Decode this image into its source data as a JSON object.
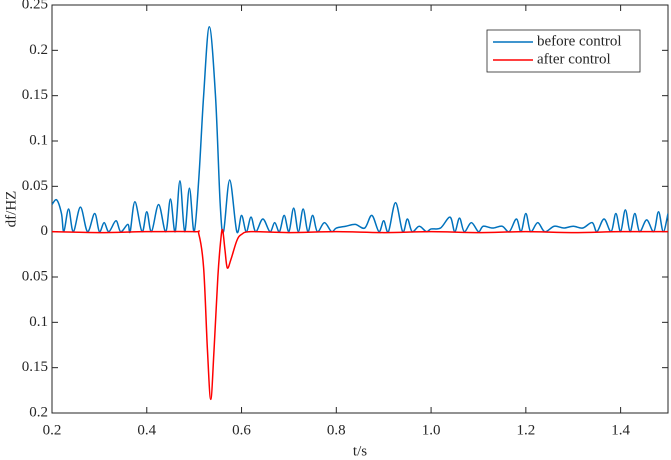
{
  "chart_data": {
    "type": "line",
    "xlabel": "t/s",
    "ylabel": "df/HZ",
    "xlim": [
      0.2,
      1.5
    ],
    "ylim": [
      -0.2,
      0.25
    ],
    "xticks": [
      0.2,
      0.4,
      0.6,
      0.8,
      {
        "value": 1,
        "label": "1.0"
      },
      1.2,
      1.4
    ],
    "yticks": [
      0.25,
      0.2,
      0.15,
      0.1,
      0.05,
      0,
      {
        "value": -0.05,
        "label": "0.05"
      },
      {
        "value": -0.1,
        "label": "0.1"
      },
      {
        "value": -0.15,
        "label": "0.15"
      },
      {
        "value": -0.2,
        "label": "0.2"
      }
    ],
    "grid": false,
    "legend": "upper right",
    "series": [
      {
        "name": "before control",
        "color": "#0072bd",
        "x": [
          0.2,
          0.21,
          0.22,
          0.225,
          0.235,
          0.245,
          0.26,
          0.275,
          0.29,
          0.3,
          0.31,
          0.32,
          0.335,
          0.345,
          0.36,
          0.365,
          0.375,
          0.39,
          0.4,
          0.41,
          0.425,
          0.44,
          0.45,
          0.46,
          0.47,
          0.48,
          0.49,
          0.5,
          0.51,
          0.52,
          0.532,
          0.545,
          0.555,
          0.562,
          0.575,
          0.59,
          0.6,
          0.61,
          0.62,
          0.63,
          0.645,
          0.66,
          0.67,
          0.68,
          0.69,
          0.7,
          0.71,
          0.72,
          0.73,
          0.74,
          0.75,
          0.76,
          0.775,
          0.79,
          0.8,
          0.82,
          0.84,
          0.86,
          0.875,
          0.89,
          0.9,
          0.91,
          0.925,
          0.94,
          0.95,
          0.96,
          0.975,
          0.99,
          1.0,
          1.02,
          1.04,
          1.05,
          1.06,
          1.07,
          1.085,
          1.1,
          1.11,
          1.13,
          1.15,
          1.165,
          1.18,
          1.19,
          1.2,
          1.21,
          1.225,
          1.24,
          1.26,
          1.28,
          1.3,
          1.32,
          1.34,
          1.35,
          1.365,
          1.38,
          1.39,
          1.4,
          1.41,
          1.42,
          1.43,
          1.44,
          1.455,
          1.47,
          1.48,
          1.49,
          1.5
        ],
        "values": [
          0.03,
          0.035,
          0.02,
          0,
          0.025,
          0,
          0.027,
          0,
          0.02,
          0,
          0.01,
          0,
          0.012,
          0,
          0.008,
          0,
          0.033,
          0,
          0.022,
          0,
          0.03,
          0,
          0.036,
          0,
          0.056,
          0,
          0.048,
          0,
          0.06,
          0.15,
          0.226,
          0.15,
          0.03,
          0,
          0.057,
          0,
          0.018,
          0,
          0.016,
          0,
          0.014,
          0,
          0.01,
          0,
          0.018,
          0,
          0.026,
          0,
          0.025,
          0,
          0.018,
          0,
          0.01,
          0,
          0.004,
          0.006,
          0.008,
          0.004,
          0.018,
          0,
          0.012,
          0,
          0.032,
          0,
          0.014,
          0,
          0.006,
          0,
          0.003,
          0.004,
          0.016,
          0,
          0.015,
          0,
          0.01,
          0,
          0.006,
          0.004,
          0.006,
          0,
          0.014,
          0,
          0.02,
          0,
          0.01,
          0,
          0.006,
          0.004,
          0.006,
          0.004,
          0.01,
          0,
          0.014,
          0,
          0.02,
          0,
          0.024,
          0,
          0.02,
          0,
          0.013,
          0,
          0.022,
          0,
          0.02
        ]
      },
      {
        "name": "after control",
        "color": "#ff0000",
        "x": [
          0.2,
          0.3,
          0.4,
          0.5,
          0.51,
          0.52,
          0.528,
          0.535,
          0.542,
          0.55,
          0.556,
          0.56,
          0.565,
          0.57,
          0.578,
          0.59,
          0.6,
          0.62,
          0.7,
          0.8,
          0.9,
          1.0,
          1.1,
          1.2,
          1.3,
          1.4,
          1.5
        ],
        "values": [
          0,
          -0.001,
          0,
          0,
          -0.003,
          -0.04,
          -0.13,
          -0.185,
          -0.13,
          -0.05,
          -0.01,
          0.002,
          -0.02,
          -0.04,
          -0.03,
          -0.01,
          -0.003,
          0,
          -0.001,
          0,
          -0.001,
          0,
          -0.001,
          0,
          -0.001,
          0,
          0
        ]
      }
    ]
  }
}
